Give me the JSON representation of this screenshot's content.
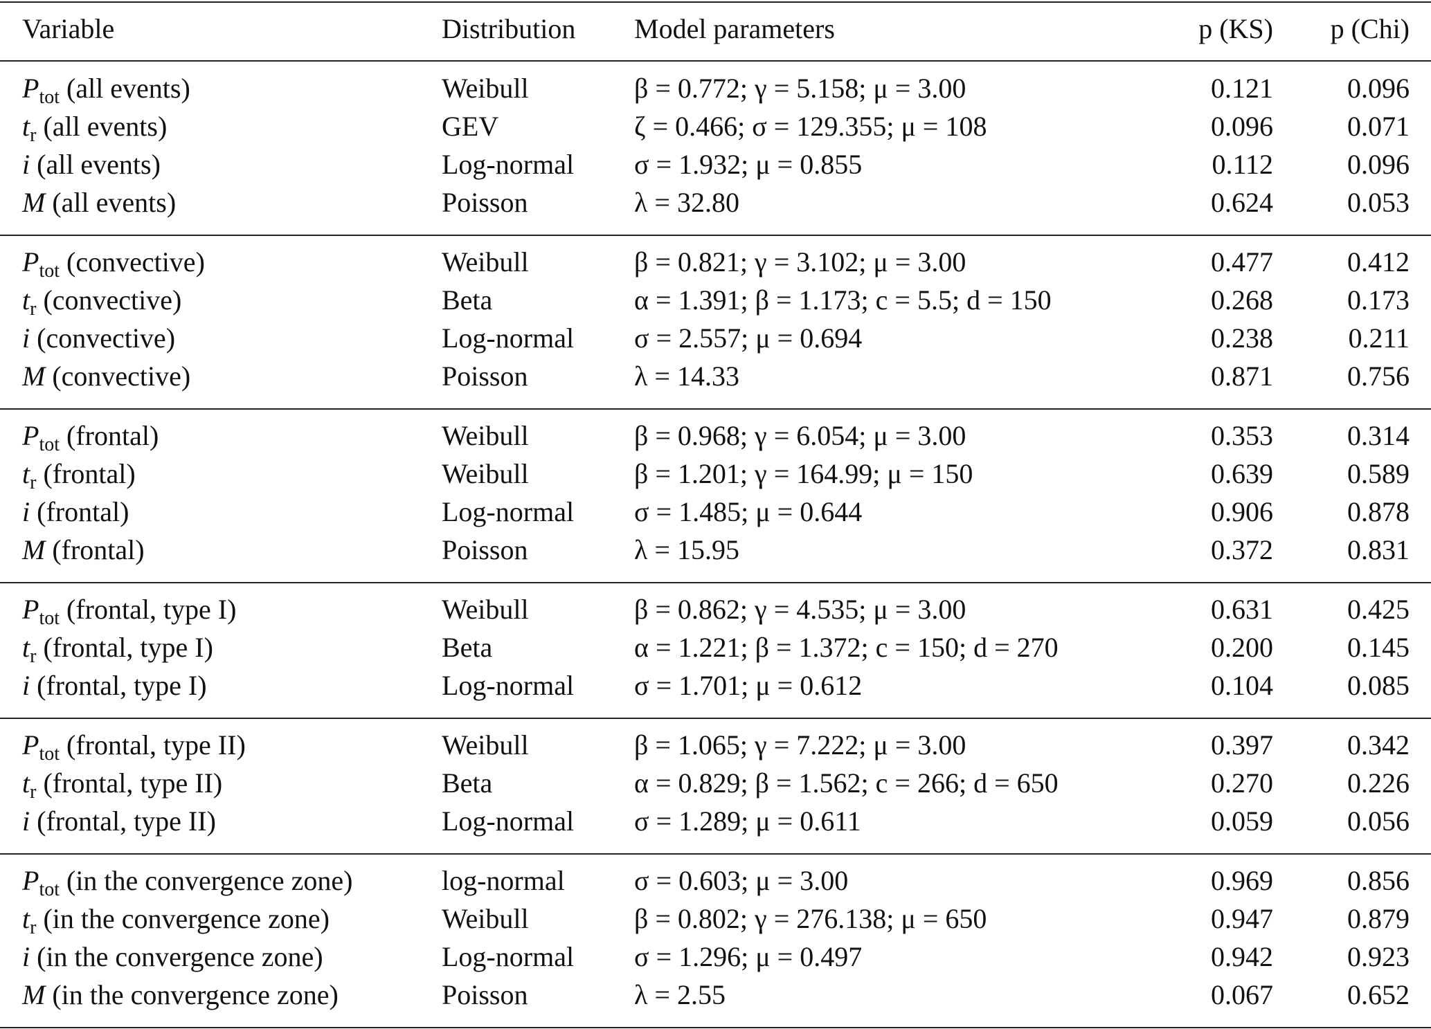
{
  "table": {
    "header": [
      "Variable",
      "Distribution",
      "Model parameters",
      "p (KS)",
      "p (Chi)"
    ],
    "groups": [
      [
        {
          "variable": {
            "symbol": "P",
            "sub": "tot",
            "label": "(all events)"
          },
          "distribution": "Weibull",
          "parameters": "β = 0.772; γ = 5.158; μ = 3.00",
          "p_ks": "0.121",
          "p_chi": "0.096"
        },
        {
          "variable": {
            "symbol": "t",
            "sub": "r",
            "label": "(all events)"
          },
          "distribution": "GEV",
          "parameters": "ζ = 0.466; σ = 129.355; μ = 108",
          "p_ks": "0.096",
          "p_chi": "0.071"
        },
        {
          "variable": {
            "symbol": "i",
            "label": "(all events)"
          },
          "distribution": "Log-normal",
          "parameters": "σ = 1.932; μ = 0.855",
          "p_ks": "0.112",
          "p_chi": "0.096"
        },
        {
          "variable": {
            "symbol": "M",
            "label": "(all events)"
          },
          "distribution": "Poisson",
          "parameters": "λ = 32.80",
          "p_ks": "0.624",
          "p_chi": "0.053"
        }
      ],
      [
        {
          "variable": {
            "symbol": "P",
            "sub": "tot",
            "label": "(convective)"
          },
          "distribution": "Weibull",
          "parameters": "β = 0.821; γ = 3.102; μ = 3.00",
          "p_ks": "0.477",
          "p_chi": "0.412"
        },
        {
          "variable": {
            "symbol": "t",
            "sub": "r",
            "label": "(convective)"
          },
          "distribution": "Beta",
          "parameters": "α = 1.391; β = 1.173; c = 5.5; d = 150",
          "p_ks": "0.268",
          "p_chi": "0.173"
        },
        {
          "variable": {
            "symbol": "i",
            "label": "(convective)"
          },
          "distribution": "Log-normal",
          "parameters": "σ = 2.557; μ = 0.694",
          "p_ks": "0.238",
          "p_chi": "0.211"
        },
        {
          "variable": {
            "symbol": "M",
            "label": "(convective)"
          },
          "distribution": "Poisson",
          "parameters": "λ = 14.33",
          "p_ks": "0.871",
          "p_chi": "0.756"
        }
      ],
      [
        {
          "variable": {
            "symbol": "P",
            "sub": "tot",
            "label": "(frontal)"
          },
          "distribution": "Weibull",
          "parameters": "β = 0.968; γ = 6.054; μ = 3.00",
          "p_ks": "0.353",
          "p_chi": "0.314"
        },
        {
          "variable": {
            "symbol": "t",
            "sub": "r",
            "label": "(frontal)"
          },
          "distribution": "Weibull",
          "parameters": "β = 1.201; γ = 164.99; μ = 150",
          "p_ks": "0.639",
          "p_chi": "0.589"
        },
        {
          "variable": {
            "symbol": "i",
            "label": "(frontal)"
          },
          "distribution": "Log-normal",
          "parameters": "σ = 1.485; μ = 0.644",
          "p_ks": "0.906",
          "p_chi": "0.878"
        },
        {
          "variable": {
            "symbol": "M",
            "label": "(frontal)"
          },
          "distribution": "Poisson",
          "parameters": "λ = 15.95",
          "p_ks": "0.372",
          "p_chi": "0.831"
        }
      ],
      [
        {
          "variable": {
            "symbol": "P",
            "sub": "tot",
            "label": "(frontal, type I)"
          },
          "distribution": "Weibull",
          "parameters": "β = 0.862; γ = 4.535; μ = 3.00",
          "p_ks": "0.631",
          "p_chi": "0.425"
        },
        {
          "variable": {
            "symbol": "t",
            "sub": "r",
            "label": "(frontal, type I)"
          },
          "distribution": "Beta",
          "parameters": "α = 1.221; β = 1.372; c = 150; d = 270",
          "p_ks": "0.200",
          "p_chi": "0.145"
        },
        {
          "variable": {
            "symbol": "i",
            "label": "(frontal, type I)"
          },
          "distribution": "Log-normal",
          "parameters": "σ = 1.701; μ = 0.612",
          "p_ks": "0.104",
          "p_chi": "0.085"
        }
      ],
      [
        {
          "variable": {
            "symbol": "P",
            "sub": "tot",
            "label": "(frontal, type II)"
          },
          "distribution": "Weibull",
          "parameters": "β = 1.065; γ = 7.222; μ = 3.00",
          "p_ks": "0.397",
          "p_chi": "0.342"
        },
        {
          "variable": {
            "symbol": "t",
            "sub": "r",
            "label": "(frontal, type II)"
          },
          "distribution": "Beta",
          "parameters": "α = 0.829; β = 1.562; c = 266; d = 650",
          "p_ks": "0.270",
          "p_chi": "0.226"
        },
        {
          "variable": {
            "symbol": "i",
            "label": "(frontal, type II)"
          },
          "distribution": "Log-normal",
          "parameters": "σ = 1.289; μ = 0.611",
          "p_ks": "0.059",
          "p_chi": "0.056"
        }
      ],
      [
        {
          "variable": {
            "symbol": "P",
            "sub": "tot",
            "label": "(in the convergence zone)"
          },
          "distribution": "log-normal",
          "parameters": "σ = 0.603; μ = 3.00",
          "p_ks": "0.969",
          "p_chi": "0.856"
        },
        {
          "variable": {
            "symbol": "t",
            "sub": "r",
            "label": "(in the convergence zone)"
          },
          "distribution": "Weibull",
          "parameters": "β = 0.802; γ = 276.138; μ = 650",
          "p_ks": "0.947",
          "p_chi": "0.879"
        },
        {
          "variable": {
            "symbol": "i",
            "label": "(in the convergence zone)"
          },
          "distribution": "Log-normal",
          "parameters": "σ = 1.296; μ = 0.497",
          "p_ks": "0.942",
          "p_chi": "0.923"
        },
        {
          "variable": {
            "symbol": "M",
            "label": "(in the convergence zone)"
          },
          "distribution": "Poisson",
          "parameters": "λ = 2.55",
          "p_ks": "0.067",
          "p_chi": "0.652"
        }
      ]
    ]
  }
}
